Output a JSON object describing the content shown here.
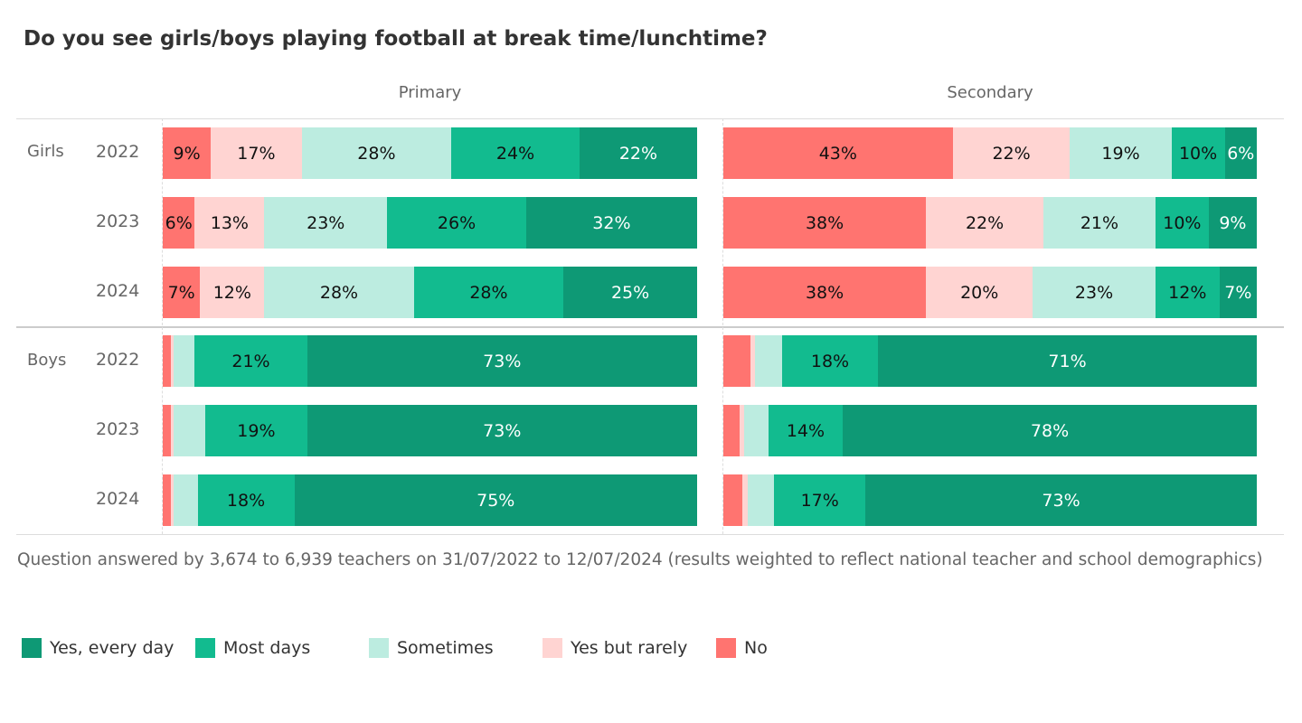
{
  "chart_data": {
    "type": "bar",
    "orientation": "horizontal-stacked-100",
    "title": "Do you see girls/boys playing football at break time/lunchtime?",
    "panels": [
      "Primary",
      "Secondary"
    ],
    "groups": [
      "Girls",
      "Boys"
    ],
    "years": [
      "2022",
      "2023",
      "2024"
    ],
    "series": [
      {
        "name": "No",
        "color": "#ff7470"
      },
      {
        "name": "Yes but rarely",
        "color": "#ffd4d2"
      },
      {
        "name": "Sometimes",
        "color": "#bcece0"
      },
      {
        "name": "Most days",
        "color": "#12bb8f"
      },
      {
        "name": "Yes, every day",
        "color": "#0e9975"
      }
    ],
    "rows": [
      {
        "panel": "Primary",
        "group": "Girls",
        "year": "2022",
        "values": [
          9,
          17,
          28,
          24,
          22
        ],
        "labels": [
          "9%",
          "17%",
          "28%",
          "24%",
          "22%"
        ]
      },
      {
        "panel": "Primary",
        "group": "Girls",
        "year": "2023",
        "values": [
          6,
          13,
          23,
          26,
          32
        ],
        "labels": [
          "6%",
          "13%",
          "23%",
          "26%",
          "32%"
        ]
      },
      {
        "panel": "Primary",
        "group": "Girls",
        "year": "2024",
        "values": [
          7,
          12,
          28,
          28,
          25
        ],
        "labels": [
          "7%",
          "12%",
          "28%",
          "28%",
          "25%"
        ]
      },
      {
        "panel": "Primary",
        "group": "Boys",
        "year": "2022",
        "values": [
          1.5,
          0.5,
          4,
          21,
          73
        ],
        "labels": [
          "",
          "",
          "",
          "21%",
          "73%"
        ]
      },
      {
        "panel": "Primary",
        "group": "Boys",
        "year": "2023",
        "values": [
          1.5,
          0.5,
          6,
          19,
          73
        ],
        "labels": [
          "",
          "",
          "",
          "19%",
          "73%"
        ]
      },
      {
        "panel": "Primary",
        "group": "Boys",
        "year": "2024",
        "values": [
          1.5,
          0.5,
          4.5,
          18,
          75
        ],
        "labels": [
          "",
          "",
          "",
          "18%",
          "75%"
        ]
      },
      {
        "panel": "Secondary",
        "group": "Girls",
        "year": "2022",
        "values": [
          43,
          22,
          19,
          10,
          6
        ],
        "labels": [
          "43%",
          "22%",
          "19%",
          "10%",
          "6%"
        ]
      },
      {
        "panel": "Secondary",
        "group": "Girls",
        "year": "2023",
        "values": [
          38,
          22,
          21,
          10,
          9
        ],
        "labels": [
          "38%",
          "22%",
          "21%",
          "10%",
          "9%"
        ]
      },
      {
        "panel": "Secondary",
        "group": "Girls",
        "year": "2024",
        "values": [
          38,
          20,
          23,
          12,
          7
        ],
        "labels": [
          "38%",
          "20%",
          "23%",
          "12%",
          "7%"
        ]
      },
      {
        "panel": "Secondary",
        "group": "Boys",
        "year": "2022",
        "values": [
          5,
          1,
          5,
          18,
          71
        ],
        "labels": [
          "",
          "",
          "",
          "18%",
          "71%"
        ]
      },
      {
        "panel": "Secondary",
        "group": "Boys",
        "year": "2023",
        "values": [
          3,
          1,
          4.5,
          14,
          78
        ],
        "labels": [
          "",
          "",
          "",
          "14%",
          "78%"
        ]
      },
      {
        "panel": "Secondary",
        "group": "Boys",
        "year": "2024",
        "values": [
          3.5,
          1,
          5,
          17,
          73
        ],
        "labels": [
          "",
          "",
          "",
          "17%",
          "73%"
        ]
      }
    ],
    "legend": [
      "Yes, every day",
      "Most days",
      "Sometimes",
      "Yes but rarely",
      "No"
    ],
    "legend_placement": "bottom-left",
    "note": "Question answered by 3,674 to 6,939 teachers on 31/07/2022 to 12/07/2024 (results weighted to reflect national teacher and school demographics)"
  }
}
